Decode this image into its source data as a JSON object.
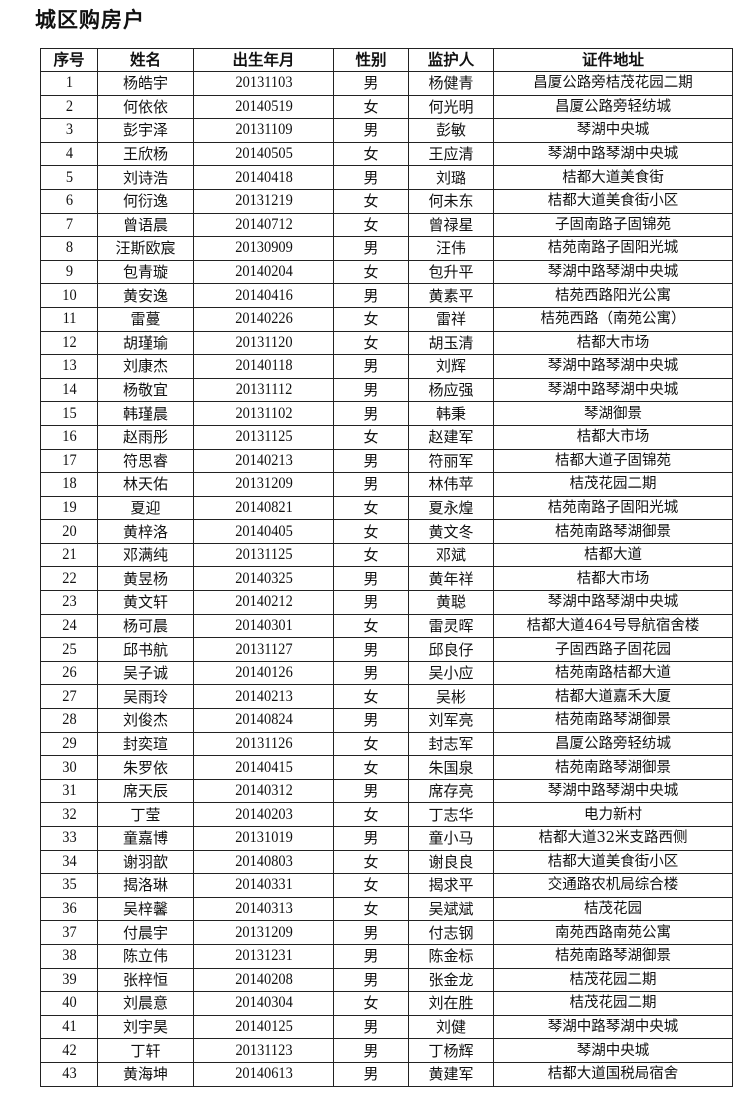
{
  "title": "城区购房户",
  "headers": [
    "序号",
    "姓名",
    "出生年月",
    "性别",
    "监护人",
    "证件地址"
  ],
  "rows": [
    [
      "1",
      "杨皓宇",
      "20131103",
      "男",
      "杨健青",
      "昌厦公路旁桔茂花园二期"
    ],
    [
      "2",
      "何依依",
      "20140519",
      "女",
      "何光明",
      "昌厦公路旁轻纺城"
    ],
    [
      "3",
      "彭宇泽",
      "20131109",
      "男",
      "彭敏",
      "琴湖中央城"
    ],
    [
      "4",
      "王欣杨",
      "20140505",
      "女",
      "王应清",
      "琴湖中路琴湖中央城"
    ],
    [
      "5",
      "刘诗浩",
      "20140418",
      "男",
      "刘璐",
      "桔都大道美食街"
    ],
    [
      "6",
      "何衍逸",
      "20131219",
      "女",
      "何未东",
      "桔都大道美食街小区"
    ],
    [
      "7",
      "曾语晨",
      "20140712",
      "女",
      "曾禄星",
      "子固南路子固锦苑"
    ],
    [
      "8",
      "汪斯欧宸",
      "20130909",
      "男",
      "汪伟",
      "桔苑南路子固阳光城"
    ],
    [
      "9",
      "包青璇",
      "20140204",
      "女",
      "包升平",
      "琴湖中路琴湖中央城"
    ],
    [
      "10",
      "黄安逸",
      "20140416",
      "男",
      "黄素平",
      "桔苑西路阳光公寓"
    ],
    [
      "11",
      "雷蔓",
      "20140226",
      "女",
      "雷祥",
      "桔苑西路（南苑公寓）"
    ],
    [
      "12",
      "胡瑾瑜",
      "20131120",
      "女",
      "胡玉清",
      "桔都大市场"
    ],
    [
      "13",
      "刘康杰",
      "20140118",
      "男",
      "刘辉",
      "琴湖中路琴湖中央城"
    ],
    [
      "14",
      "杨敬宜",
      "20131112",
      "男",
      "杨应强",
      "琴湖中路琴湖中央城"
    ],
    [
      "15",
      "韩瑾晨",
      "20131102",
      "男",
      "韩秉",
      "琴湖御景"
    ],
    [
      "16",
      "赵雨彤",
      "20131125",
      "女",
      "赵建军",
      "桔都大市场"
    ],
    [
      "17",
      "符思睿",
      "20140213",
      "男",
      "符丽军",
      "桔都大道子固锦苑"
    ],
    [
      "18",
      "林天佑",
      "20131209",
      "男",
      "林伟苹",
      "桔茂花园二期"
    ],
    [
      "19",
      "夏迎",
      "20140821",
      "女",
      "夏永煌",
      "桔苑南路子固阳光城"
    ],
    [
      "20",
      "黄梓洛",
      "20140405",
      "女",
      "黄文冬",
      "桔苑南路琴湖御景"
    ],
    [
      "21",
      "邓满纯",
      "20131125",
      "女",
      "邓斌",
      "桔都大道"
    ],
    [
      "22",
      "黄昱杨",
      "20140325",
      "男",
      "黄年祥",
      "桔都大市场"
    ],
    [
      "23",
      "黄文轩",
      "20140212",
      "男",
      "黄聪",
      "琴湖中路琴湖中央城"
    ],
    [
      "24",
      "杨可晨",
      "20140301",
      "女",
      "雷灵晖",
      "桔都大道464号导航宿舍楼"
    ],
    [
      "25",
      "邱书航",
      "20131127",
      "男",
      "邱良仔",
      "子固西路子固花园"
    ],
    [
      "26",
      "吴子诚",
      "20140126",
      "男",
      "吴小应",
      "桔苑南路桔都大道"
    ],
    [
      "27",
      "吴雨玲",
      "20140213",
      "女",
      "吴彬",
      "桔都大道嘉禾大厦"
    ],
    [
      "28",
      "刘俊杰",
      "20140824",
      "男",
      "刘军亮",
      "桔苑南路琴湖御景"
    ],
    [
      "29",
      "封奕瑄",
      "20131126",
      "女",
      "封志军",
      "昌厦公路旁轻纺城"
    ],
    [
      "30",
      "朱罗依",
      "20140415",
      "女",
      "朱国泉",
      "桔苑南路琴湖御景"
    ],
    [
      "31",
      "席天辰",
      "20140312",
      "男",
      "席存亮",
      "琴湖中路琴湖中央城"
    ],
    [
      "32",
      "丁莹",
      "20140203",
      "女",
      "丁志华",
      "电力新村"
    ],
    [
      "33",
      "童嘉博",
      "20131019",
      "男",
      "童小马",
      "桔都大道32米支路西侧"
    ],
    [
      "34",
      "谢羽歆",
      "20140803",
      "女",
      "谢良良",
      "桔都大道美食街小区"
    ],
    [
      "35",
      "揭洛琳",
      "20140331",
      "女",
      "揭求平",
      "交通路农机局综合楼"
    ],
    [
      "36",
      "吴梓馨",
      "20140313",
      "女",
      "吴斌斌",
      "桔茂花园"
    ],
    [
      "37",
      "付晨宇",
      "20131209",
      "男",
      "付志钢",
      "南苑西路南苑公寓"
    ],
    [
      "38",
      "陈立伟",
      "20131231",
      "男",
      "陈金标",
      "桔苑南路琴湖御景"
    ],
    [
      "39",
      "张梓恒",
      "20140208",
      "男",
      "张金龙",
      "桔茂花园二期"
    ],
    [
      "40",
      "刘晨意",
      "20140304",
      "女",
      "刘在胜",
      "桔茂花园二期"
    ],
    [
      "41",
      "刘宇昊",
      "20140125",
      "男",
      "刘健",
      "琴湖中路琴湖中央城"
    ],
    [
      "42",
      "丁轩",
      "20131123",
      "男",
      "丁杨辉",
      "琴湖中央城"
    ],
    [
      "43",
      "黄海坤",
      "20140613",
      "男",
      "黄建军",
      "桔都大道国税局宿舍"
    ]
  ]
}
